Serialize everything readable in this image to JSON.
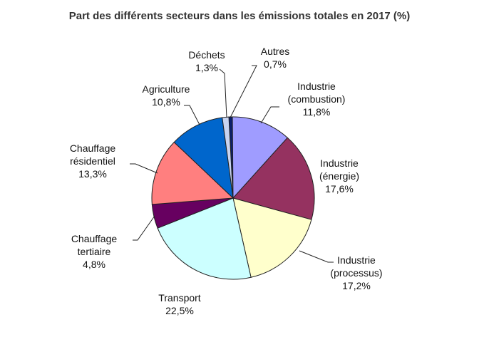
{
  "title": "Part des différents secteurs dans les émissions totales en 2017 (%)",
  "chart_data": {
    "type": "pie",
    "title": "Part des différents secteurs dans les émissions totales en 2017 (%)",
    "slices": [
      {
        "label": [
          "Autres"
        ],
        "value": 0.7,
        "value_label": "0,7%",
        "color": "#0a1f6e"
      },
      {
        "label": [
          "Industrie",
          "(combustion)"
        ],
        "value": 11.8,
        "value_label": "11,8%",
        "color": "#9f9cff"
      },
      {
        "label": [
          "Industrie",
          "(énergie)"
        ],
        "value": 17.6,
        "value_label": "17,6%",
        "color": "#953260"
      },
      {
        "label": [
          "Industrie",
          "(processus)"
        ],
        "value": 17.2,
        "value_label": "17,2%",
        "color": "#ffffcc"
      },
      {
        "label": [
          "Transport"
        ],
        "value": 22.5,
        "value_label": "22,5%",
        "color": "#ccffff"
      },
      {
        "label": [
          "Chauffage",
          "tertiaire"
        ],
        "value": 4.8,
        "value_label": "4,8%",
        "color": "#670060"
      },
      {
        "label": [
          "Chauffage",
          "résidentiel"
        ],
        "value": 13.3,
        "value_label": "13,3%",
        "color": "#ff7f7f"
      },
      {
        "label": [
          "Agriculture"
        ],
        "value": 10.8,
        "value_label": "10,8%",
        "color": "#0066cc"
      },
      {
        "label": [
          "Déchets"
        ],
        "value": 1.3,
        "value_label": "1,3%",
        "color": "#c9d4f0"
      }
    ]
  }
}
